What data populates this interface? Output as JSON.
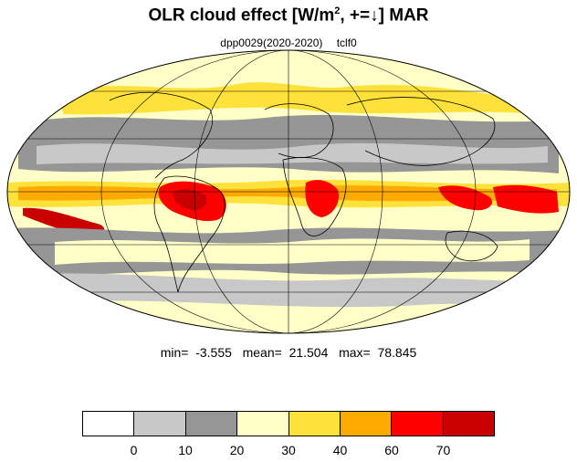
{
  "title": {
    "text": "OLR cloud effect [W/m",
    "sup": "2",
    "rest": ", +=↓]  MAR"
  },
  "subtitle": {
    "experiment": "dpp0029(2020-2020)",
    "variable": "tclf0"
  },
  "stats": {
    "min_label": "min=",
    "min_value": "-3.555",
    "mean_label": "mean=",
    "mean_value": "21.504",
    "max_label": "max=",
    "max_value": "78.845"
  },
  "colorbar": {
    "colors": [
      "#ffffff",
      "#c8c8c8",
      "#969696",
      "#ffffc8",
      "#ffe13c",
      "#ffaa00",
      "#ff0000",
      "#c80000"
    ],
    "tick_labels": [
      "0",
      "10",
      "20",
      "30",
      "40",
      "60",
      "70"
    ]
  },
  "chart_data": {
    "type": "heatmap",
    "projection": "mollweide",
    "title": "OLR cloud effect [W/m2, +=↓]  MAR",
    "subtitle": "dpp0029(2020-2020)   tclf0",
    "levels": [
      0,
      10,
      20,
      30,
      40,
      60,
      70
    ],
    "min": -3.555,
    "mean": 21.504,
    "max": 78.845,
    "graticule": true
  }
}
